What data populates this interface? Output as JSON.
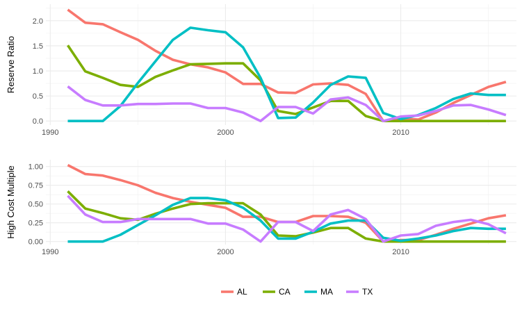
{
  "legend": {
    "placement": "bottom",
    "entries": [
      {
        "label": "AL",
        "color": "#F8766D"
      },
      {
        "label": "CA",
        "color": "#7CAE00"
      },
      {
        "label": "MA",
        "color": "#00BFC4"
      },
      {
        "label": "TX",
        "color": "#C77CFF"
      }
    ]
  },
  "chart_data": [
    {
      "type": "line",
      "ylabel": "Reserve Ratio",
      "xlabel": "",
      "grid": true,
      "xlim": [
        1989.75,
        2016.6
      ],
      "ylim": [
        -0.08,
        2.33
      ],
      "x_ticks": [
        1990,
        2000,
        2010
      ],
      "y_ticks": [
        0.0,
        0.5,
        1.0,
        1.5,
        2.0
      ],
      "y_tick_labels": [
        "0.0",
        "0.5",
        "1.0",
        "1.5",
        "2.0"
      ],
      "x": [
        1991,
        1992,
        1993,
        1994,
        1995,
        1996,
        1997,
        1998,
        1999,
        2000,
        2001,
        2002,
        2003,
        2004,
        2005,
        2006,
        2007,
        2008,
        2009,
        2010,
        2011,
        2012,
        2013,
        2014,
        2015,
        2016
      ],
      "series": [
        {
          "name": "AL",
          "color": "#F8766D",
          "values": [
            2.22,
            1.96,
            1.93,
            1.77,
            1.62,
            1.4,
            1.22,
            1.13,
            1.07,
            0.97,
            0.74,
            0.74,
            0.57,
            0.56,
            0.73,
            0.75,
            0.72,
            0.54,
            0.0,
            0.05,
            0.03,
            0.17,
            0.36,
            0.52,
            0.68,
            0.78
          ]
        },
        {
          "name": "CA",
          "color": "#7CAE00",
          "values": [
            1.51,
            0.99,
            0.86,
            0.72,
            0.68,
            0.88,
            1.01,
            1.13,
            1.14,
            1.15,
            1.15,
            0.81,
            0.2,
            0.14,
            0.27,
            0.4,
            0.4,
            0.1,
            0.0,
            0.0,
            0.0,
            0.0,
            0.0,
            0.0,
            0.0,
            0.0
          ]
        },
        {
          "name": "MA",
          "color": "#00BFC4",
          "values": [
            0.0,
            0.0,
            0.0,
            0.3,
            0.76,
            1.19,
            1.62,
            1.86,
            1.81,
            1.77,
            1.47,
            0.86,
            0.06,
            0.07,
            0.37,
            0.72,
            0.89,
            0.86,
            0.16,
            0.04,
            0.12,
            0.26,
            0.44,
            0.55,
            0.52,
            0.52
          ]
        },
        {
          "name": "TX",
          "color": "#C77CFF",
          "values": [
            0.69,
            0.42,
            0.31,
            0.31,
            0.34,
            0.34,
            0.35,
            0.35,
            0.26,
            0.26,
            0.17,
            0.0,
            0.28,
            0.28,
            0.15,
            0.43,
            0.47,
            0.32,
            0.0,
            0.09,
            0.11,
            0.2,
            0.31,
            0.32,
            0.23,
            0.12
          ]
        }
      ]
    },
    {
      "type": "line",
      "ylabel": "High Cost Multiple",
      "xlabel": "",
      "grid": true,
      "xlim": [
        1989.75,
        2016.6
      ],
      "ylim": [
        -0.04,
        1.09
      ],
      "x_ticks": [
        1990,
        2000,
        2010
      ],
      "y_ticks": [
        0.0,
        0.25,
        0.5,
        0.75,
        1.0
      ],
      "y_tick_labels": [
        "0.00",
        "0.25",
        "0.50",
        "0.75",
        "1.00"
      ],
      "x": [
        1991,
        1992,
        1993,
        1994,
        1995,
        1996,
        1997,
        1998,
        1999,
        2000,
        2001,
        2002,
        2003,
        2004,
        2005,
        2006,
        2007,
        2008,
        2009,
        2010,
        2011,
        2012,
        2013,
        2014,
        2015,
        2016
      ],
      "series": [
        {
          "name": "AL",
          "color": "#F8766D",
          "values": [
            1.02,
            0.9,
            0.88,
            0.82,
            0.75,
            0.65,
            0.58,
            0.53,
            0.49,
            0.45,
            0.33,
            0.33,
            0.26,
            0.26,
            0.34,
            0.34,
            0.33,
            0.25,
            0.0,
            0.02,
            0.02,
            0.09,
            0.17,
            0.24,
            0.31,
            0.35
          ]
        },
        {
          "name": "CA",
          "color": "#7CAE00",
          "values": [
            0.67,
            0.44,
            0.38,
            0.31,
            0.29,
            0.37,
            0.44,
            0.5,
            0.51,
            0.51,
            0.51,
            0.36,
            0.08,
            0.07,
            0.12,
            0.18,
            0.18,
            0.04,
            0.0,
            0.0,
            0.0,
            0.0,
            0.0,
            0.0,
            0.0,
            0.0
          ]
        },
        {
          "name": "MA",
          "color": "#00BFC4",
          "values": [
            0.0,
            0.0,
            0.0,
            0.09,
            0.22,
            0.35,
            0.49,
            0.58,
            0.58,
            0.55,
            0.45,
            0.28,
            0.04,
            0.04,
            0.13,
            0.24,
            0.28,
            0.28,
            0.05,
            0.01,
            0.04,
            0.08,
            0.14,
            0.18,
            0.17,
            0.17
          ]
        },
        {
          "name": "TX",
          "color": "#C77CFF",
          "values": [
            0.61,
            0.36,
            0.26,
            0.26,
            0.3,
            0.3,
            0.3,
            0.3,
            0.24,
            0.24,
            0.16,
            0.0,
            0.26,
            0.26,
            0.14,
            0.36,
            0.42,
            0.3,
            0.0,
            0.08,
            0.1,
            0.21,
            0.26,
            0.29,
            0.23,
            0.11
          ]
        }
      ]
    }
  ]
}
